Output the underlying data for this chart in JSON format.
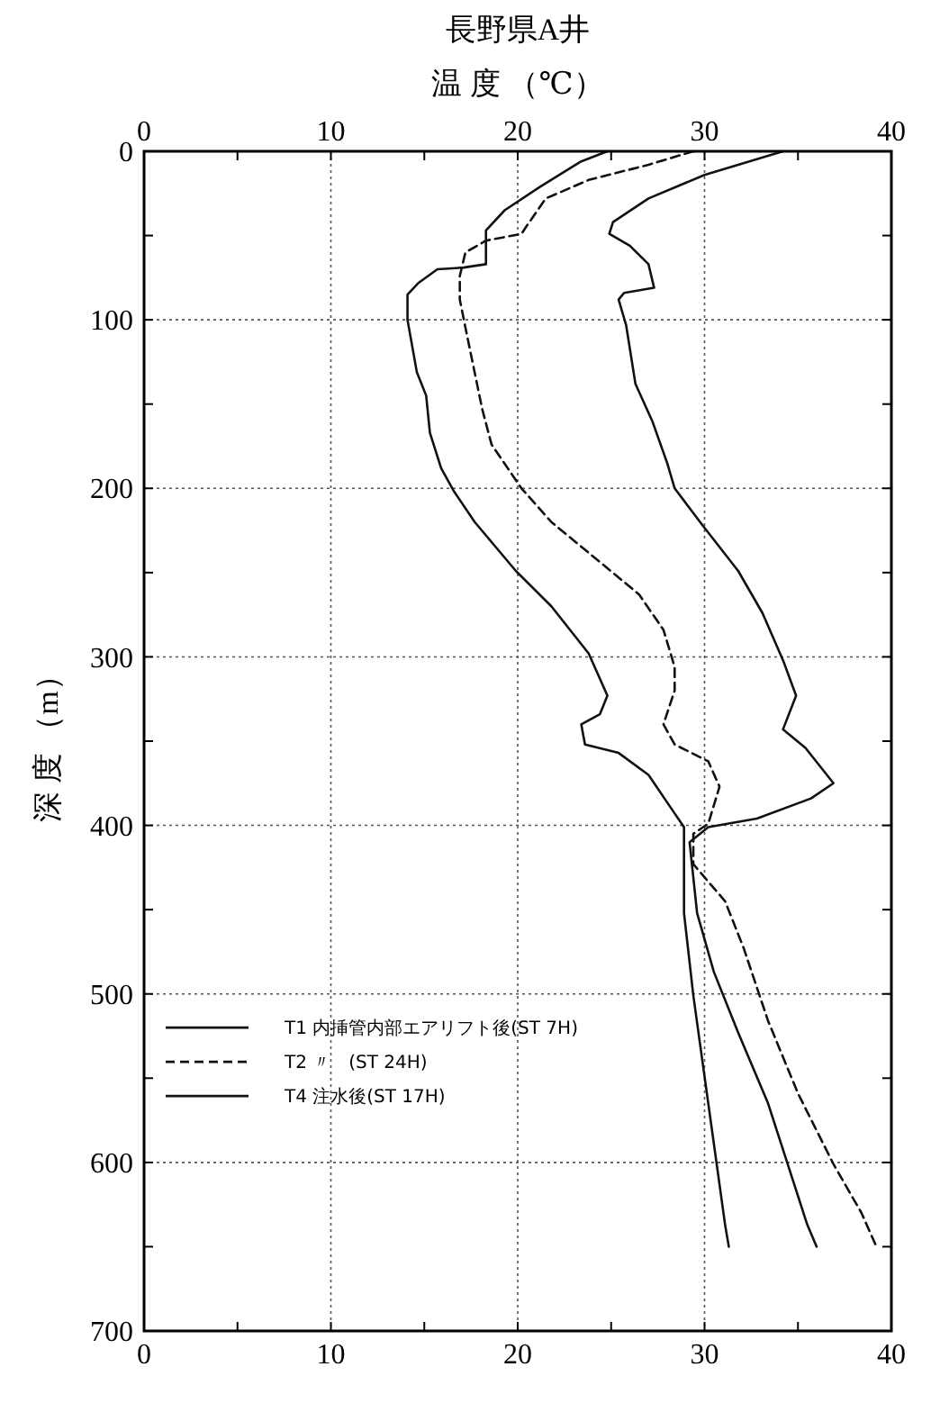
{
  "chart_data": {
    "type": "line",
    "title": "長野県A井",
    "x2label": "温 度 （℃）",
    "ylabel": "深 度 （m）",
    "xlim": [
      0,
      40
    ],
    "xticks": [
      0,
      {
        "value": 5,
        "label": null
      },
      10,
      {
        "value": 15,
        "label": null
      },
      20,
      {
        "value": 25,
        "label": null
      },
      30,
      {
        "value": 35,
        "label": null
      },
      40
    ],
    "x2lim": [
      0,
      40
    ],
    "x2ticks": [
      0,
      {
        "value": 5,
        "label": null
      },
      10,
      {
        "value": 15,
        "label": null
      },
      20,
      {
        "value": 25,
        "label": null
      },
      30,
      {
        "value": 35,
        "label": null
      },
      40
    ],
    "ylim": [
      700,
      0
    ],
    "yticks": [
      0,
      {
        "value": 50,
        "label": null
      },
      100,
      {
        "value": 150,
        "label": null
      },
      200,
      {
        "value": 250,
        "label": null
      },
      300,
      {
        "value": 350,
        "label": null
      },
      400,
      {
        "value": 450,
        "label": null
      },
      500,
      {
        "value": 550,
        "label": null
      },
      600,
      {
        "value": 650,
        "label": null
      },
      700
    ],
    "grid": true,
    "legend": "left",
    "series": [
      {
        "name": "T1 内挿管内部エアリフト後(ST 7H)",
        "color": "#111111",
        "line_style": "solid",
        "x": [
          34.2,
          30.0,
          27.0,
          25.1,
          24.9,
          26.0,
          27.0,
          27.3,
          25.7,
          25.4,
          25.8,
          26.3,
          27.2,
          28.0,
          28.4,
          29.9,
          31.8,
          33.1,
          34.2,
          34.9,
          34.2,
          35.4,
          36.9,
          35.7,
          32.8,
          30.2,
          29.2,
          29.6,
          30.5,
          31.8,
          33.4,
          35.5,
          36.0
        ],
        "values": [
          0,
          14,
          28,
          42,
          49,
          56,
          67,
          81,
          84,
          88,
          103,
          138,
          160,
          185,
          200,
          222,
          249,
          274,
          302,
          323,
          343,
          354,
          375,
          384,
          396,
          401,
          410,
          452,
          487,
          523,
          565,
          637,
          650
        ]
      },
      {
        "name": "T2 〃　(ST 24H)",
        "color": "#111111",
        "line_style": "dashed",
        "x": [
          29.4,
          27.0,
          23.8,
          21.5,
          20.5,
          20.2,
          18.3,
          17.2,
          16.9,
          16.9,
          17.3,
          18.1,
          18.6,
          20.2,
          21.8,
          24.1,
          26.5,
          27.8,
          28.4,
          28.4,
          27.8,
          28.4,
          30.2,
          30.8,
          30.2,
          29.4,
          29.4,
          31.1,
          32.1,
          33.4,
          35.0,
          36.9,
          38.4,
          39.2
        ],
        "values": [
          0,
          8,
          17,
          28,
          44,
          49,
          53,
          60,
          74,
          88,
          110,
          153,
          174,
          200,
          220,
          241,
          263,
          284,
          306,
          320,
          340,
          352,
          362,
          377,
          399,
          405,
          423,
          445,
          473,
          516,
          559,
          601,
          630,
          650
        ]
      },
      {
        "name": "T4 注水後(ST 17H)",
        "color": "#111111",
        "line_style": "solid",
        "x": [
          24.8,
          23.4,
          21.2,
          19.3,
          18.3,
          18.3,
          17.1,
          15.7,
          14.7,
          14.1,
          14.1,
          14.6,
          15.1,
          15.3,
          15.9,
          16.6,
          17.7,
          19.9,
          21.8,
          23.8,
          24.8,
          24.4,
          23.4,
          23.6,
          25.4,
          27.0,
          28.1,
          28.9,
          28.9,
          29.4,
          30.2,
          31.1,
          31.3
        ],
        "values": [
          0,
          6,
          21,
          35,
          47,
          67,
          69,
          70,
          78,
          85,
          100,
          131,
          145,
          167,
          188,
          202,
          220,
          249,
          270,
          298,
          323,
          334,
          340,
          352,
          357,
          370,
          388,
          401,
          452,
          501,
          565,
          637,
          650
        ]
      }
    ]
  }
}
